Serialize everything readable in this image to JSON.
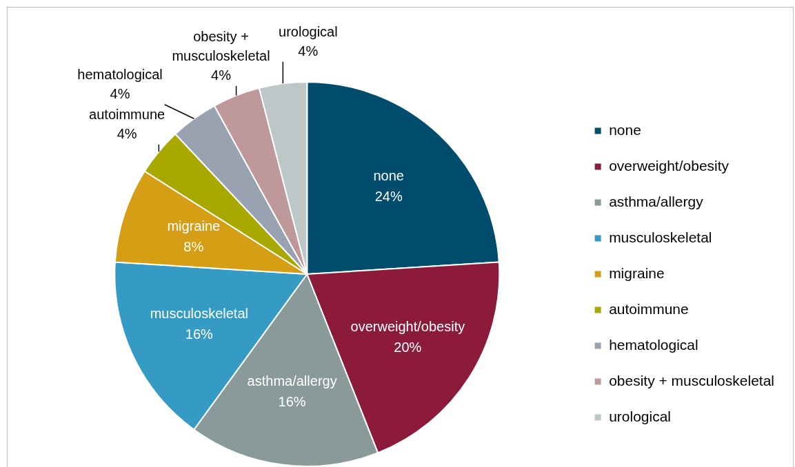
{
  "chart_data": {
    "type": "pie",
    "categories": [
      "none",
      "overweight/obesity",
      "asthma/allergy",
      "musculoskeletal",
      "migraine",
      "autoimmune",
      "hematological",
      "obesity + musculoskeletal",
      "urological"
    ],
    "values": [
      24,
      20,
      16,
      16,
      8,
      4,
      4,
      4,
      4
    ],
    "value_labels": [
      "24%",
      "20%",
      "16%",
      "16%",
      "8%",
      "4%",
      "4%",
      "4%",
      "4%"
    ],
    "colors": [
      "#004c6d",
      "#8c1b3b",
      "#899a98",
      "#359bc5",
      "#d69e14",
      "#a9a800",
      "#98a2b0",
      "#bf9899",
      "#bec7c7"
    ],
    "legend": "right"
  }
}
